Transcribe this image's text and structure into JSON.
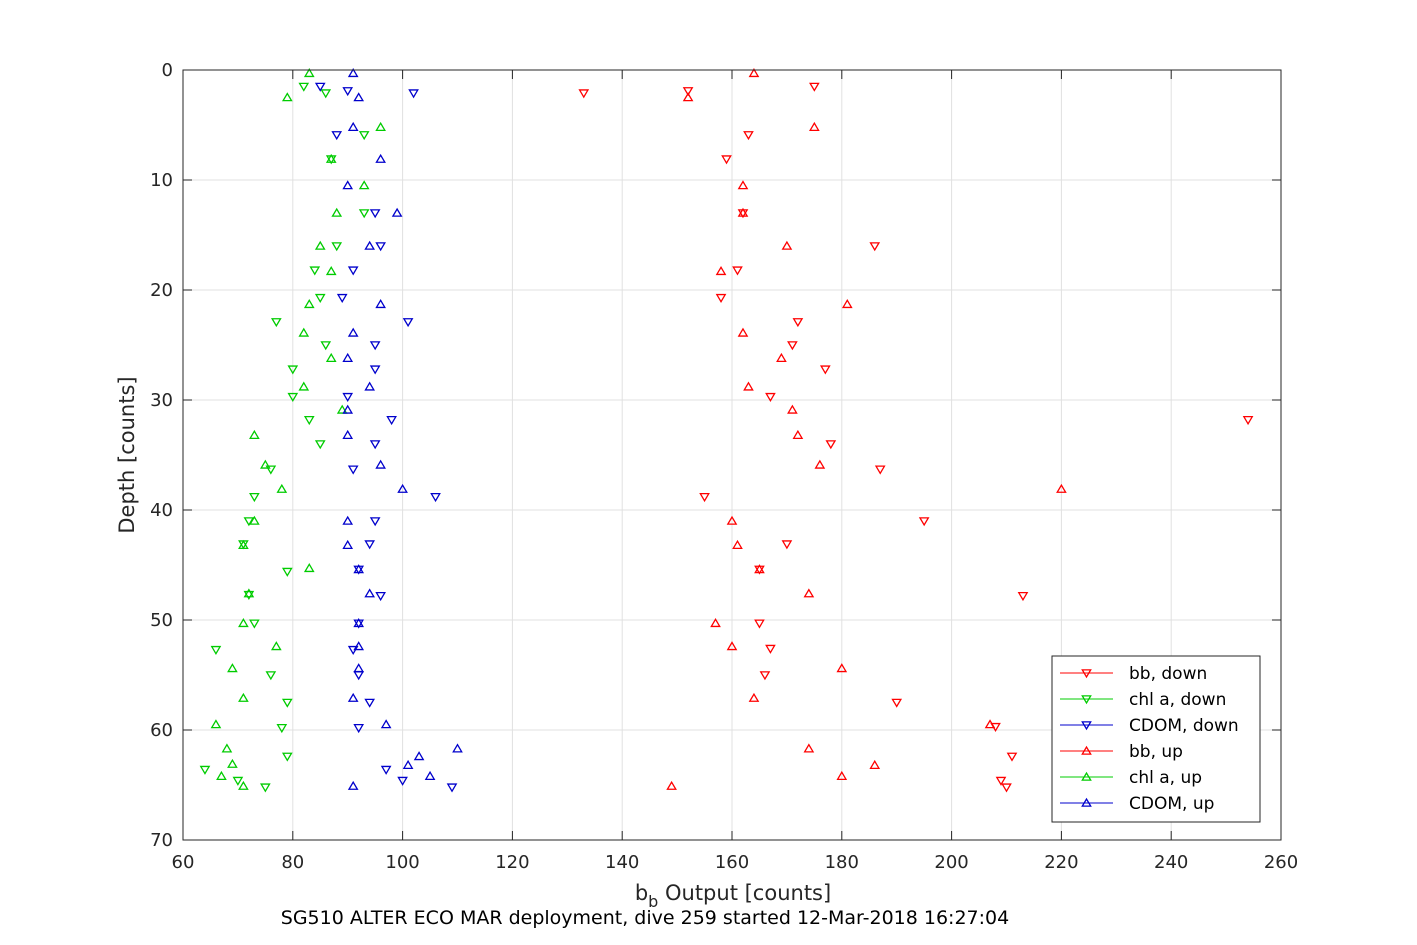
{
  "chart_data": {
    "type": "scatter",
    "title": "",
    "xlabel_main": "b",
    "xlabel_sub": "b",
    "xlabel_rest": " Output [counts]",
    "ylabel": "Depth [counts]",
    "caption": "SG510 ALTER ECO MAR deployment, dive 259 started 12-Mar-2018 16:27:04",
    "xlim": [
      60,
      260
    ],
    "ylim": [
      0,
      70
    ],
    "y_reversed": true,
    "grid": true,
    "legend_position": "bottom-right",
    "x_ticks": [
      "60",
      "80",
      "100",
      "120",
      "140",
      "160",
      "180",
      "200",
      "220",
      "240",
      "260"
    ],
    "y_ticks": [
      "0",
      "10",
      "20",
      "30",
      "40",
      "50",
      "60",
      "70"
    ],
    "series": [
      {
        "name": "bb, down",
        "marker": "triangle-down",
        "color": "#ff0000",
        "points": [
          [
            175,
            1.5
          ],
          [
            133,
            2.1
          ],
          [
            152,
            1.9
          ],
          [
            163,
            5.9
          ],
          [
            159,
            8.1
          ],
          [
            162,
            13
          ],
          [
            186,
            16
          ],
          [
            161,
            18.2
          ],
          [
            158,
            20.7
          ],
          [
            172,
            22.9
          ],
          [
            171,
            25
          ],
          [
            177,
            27.2
          ],
          [
            167,
            29.7
          ],
          [
            254,
            31.8
          ],
          [
            178,
            34
          ],
          [
            187,
            36.3
          ],
          [
            155,
            38.8
          ],
          [
            195,
            41
          ],
          [
            170,
            43.1
          ],
          [
            165,
            45.4
          ],
          [
            213,
            47.8
          ],
          [
            165,
            50.3
          ],
          [
            167,
            52.6
          ],
          [
            166,
            55
          ],
          [
            190,
            57.5
          ],
          [
            208,
            59.7
          ],
          [
            211,
            62.4
          ],
          [
            209,
            64.6
          ],
          [
            210,
            65.2
          ]
        ]
      },
      {
        "name": "chl a, down",
        "marker": "triangle-down",
        "color": "#00cc00",
        "points": [
          [
            82,
            1.5
          ],
          [
            86,
            2.1
          ],
          [
            93,
            5.9
          ],
          [
            87,
            8.1
          ],
          [
            93,
            13
          ],
          [
            88,
            16
          ],
          [
            84,
            18.2
          ],
          [
            85,
            20.7
          ],
          [
            77,
            22.9
          ],
          [
            86,
            25
          ],
          [
            80,
            27.2
          ],
          [
            80,
            29.7
          ],
          [
            83,
            31.8
          ],
          [
            85,
            34
          ],
          [
            76,
            36.3
          ],
          [
            73,
            38.8
          ],
          [
            72,
            41
          ],
          [
            71,
            43.1
          ],
          [
            79,
            45.6
          ],
          [
            72,
            47.7
          ],
          [
            73,
            50.3
          ],
          [
            66,
            52.7
          ],
          [
            76,
            55
          ],
          [
            79,
            57.5
          ],
          [
            78,
            59.8
          ],
          [
            79,
            62.4
          ],
          [
            64,
            63.6
          ],
          [
            70,
            64.6
          ],
          [
            75,
            65.2
          ]
        ]
      },
      {
        "name": "CDOM, down",
        "marker": "triangle-down",
        "color": "#0000cc",
        "points": [
          [
            85,
            1.5
          ],
          [
            90,
            1.9
          ],
          [
            102,
            2.1
          ],
          [
            88,
            5.9
          ],
          [
            95,
            13
          ],
          [
            96,
            16
          ],
          [
            91,
            18.2
          ],
          [
            89,
            20.7
          ],
          [
            101,
            22.9
          ],
          [
            95,
            25
          ],
          [
            95,
            27.2
          ],
          [
            90,
            29.7
          ],
          [
            98,
            31.8
          ],
          [
            95,
            34
          ],
          [
            91,
            36.3
          ],
          [
            106,
            38.8
          ],
          [
            95,
            41
          ],
          [
            94,
            43.1
          ],
          [
            92,
            45.4
          ],
          [
            96,
            47.8
          ],
          [
            92,
            50.3
          ],
          [
            91,
            52.7
          ],
          [
            92,
            55
          ],
          [
            94,
            57.5
          ],
          [
            92,
            59.8
          ],
          [
            97,
            63.6
          ],
          [
            100,
            64.6
          ],
          [
            109,
            65.2
          ]
        ]
      },
      {
        "name": "bb, up",
        "marker": "triangle-up",
        "color": "#ff0000",
        "points": [
          [
            164,
            0.3
          ],
          [
            152,
            2.5
          ],
          [
            175,
            5.2
          ],
          [
            162,
            10.5
          ],
          [
            162,
            13
          ],
          [
            170,
            16
          ],
          [
            158,
            18.3
          ],
          [
            181,
            21.3
          ],
          [
            162,
            23.9
          ],
          [
            169,
            26.2
          ],
          [
            163,
            28.8
          ],
          [
            171,
            30.9
          ],
          [
            172,
            33.2
          ],
          [
            176,
            35.9
          ],
          [
            220,
            38.1
          ],
          [
            160,
            41
          ],
          [
            161,
            43.2
          ],
          [
            165,
            45.4
          ],
          [
            174,
            47.6
          ],
          [
            157,
            50.3
          ],
          [
            160,
            52.4
          ],
          [
            180,
            54.4
          ],
          [
            164,
            57.1
          ],
          [
            207,
            59.5
          ],
          [
            174,
            61.7
          ],
          [
            186,
            63.2
          ],
          [
            180,
            64.2
          ],
          [
            149,
            65.1
          ]
        ]
      },
      {
        "name": "chl a, up",
        "marker": "triangle-up",
        "color": "#00cc00",
        "points": [
          [
            83,
            0.3
          ],
          [
            79,
            2.5
          ],
          [
            96,
            5.2
          ],
          [
            87,
            8.1
          ],
          [
            93,
            10.5
          ],
          [
            88,
            13
          ],
          [
            85,
            16
          ],
          [
            87,
            18.3
          ],
          [
            83,
            21.3
          ],
          [
            82,
            23.9
          ],
          [
            87,
            26.2
          ],
          [
            82,
            28.8
          ],
          [
            89,
            30.9
          ],
          [
            73,
            33.2
          ],
          [
            75,
            35.9
          ],
          [
            78,
            38.1
          ],
          [
            73,
            41
          ],
          [
            71,
            43.2
          ],
          [
            83,
            45.3
          ],
          [
            72,
            47.6
          ],
          [
            71,
            50.3
          ],
          [
            77,
            52.4
          ],
          [
            69,
            54.4
          ],
          [
            71,
            57.1
          ],
          [
            66,
            59.5
          ],
          [
            68,
            61.7
          ],
          [
            69,
            63.1
          ],
          [
            67,
            64.2
          ],
          [
            71,
            65.1
          ]
        ]
      },
      {
        "name": "CDOM, up",
        "marker": "triangle-up",
        "color": "#0000cc",
        "points": [
          [
            91,
            0.3
          ],
          [
            92,
            2.5
          ],
          [
            91,
            5.2
          ],
          [
            96,
            8.1
          ],
          [
            90,
            10.5
          ],
          [
            99,
            13
          ],
          [
            94,
            16
          ],
          [
            96,
            21.3
          ],
          [
            91,
            23.9
          ],
          [
            90,
            26.2
          ],
          [
            94,
            28.8
          ],
          [
            90,
            30.9
          ],
          [
            90,
            33.2
          ],
          [
            96,
            35.9
          ],
          [
            100,
            38.1
          ],
          [
            90,
            41
          ],
          [
            90,
            43.2
          ],
          [
            92,
            45.4
          ],
          [
            94,
            47.6
          ],
          [
            92,
            50.3
          ],
          [
            92,
            52.4
          ],
          [
            92,
            54.4
          ],
          [
            91,
            57.1
          ],
          [
            97,
            59.5
          ],
          [
            110,
            61.7
          ],
          [
            103,
            62.4
          ],
          [
            101,
            63.2
          ],
          [
            105,
            64.2
          ],
          [
            91,
            65.1
          ]
        ]
      }
    ]
  }
}
